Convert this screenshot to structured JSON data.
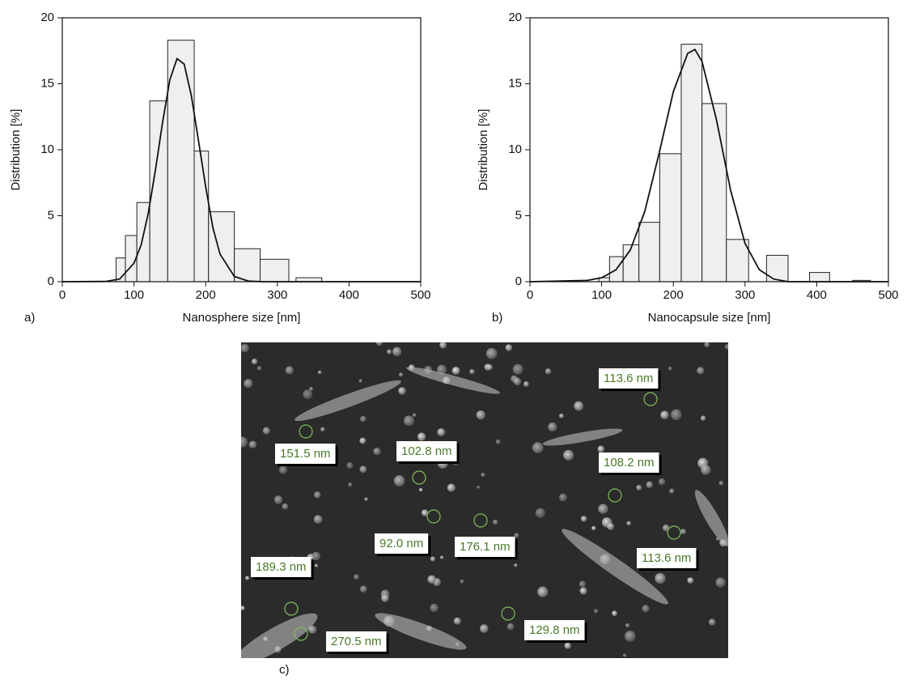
{
  "chart_data": [
    {
      "type": "histogram",
      "panel_label": "a)",
      "x_label": "Nanosphere size [nm]",
      "y_label": "Distribution [%]",
      "bins": [
        75,
        88,
        104,
        122,
        147,
        184,
        204,
        240,
        276,
        316,
        326,
        362
      ],
      "values": [
        1.8,
        3.5,
        6.0,
        13.7,
        18.3,
        9.9,
        5.3,
        2.5,
        1.7,
        0,
        0.3
      ],
      "color": "#efefef",
      "fit": {
        "x": [
          0,
          60,
          80,
          100,
          110,
          120,
          130,
          140,
          150,
          160,
          170,
          180,
          190,
          200,
          210,
          220,
          240,
          260,
          280,
          500
        ],
        "values": [
          0,
          0.02,
          0.2,
          1.4,
          2.8,
          5.2,
          8.5,
          12.1,
          15.3,
          16.9,
          16.5,
          14.1,
          10.7,
          7.2,
          4.1,
          2.1,
          0.4,
          0.04,
          0,
          0
        ]
      },
      "xlim": [
        0,
        500
      ],
      "xticks": [
        0,
        100,
        200,
        300,
        400,
        500
      ],
      "ylim": [
        0,
        20
      ],
      "yticks": [
        0,
        5,
        10,
        15,
        20
      ]
    },
    {
      "type": "histogram",
      "panel_label": "b)",
      "x_label": "Nanocapsule size [nm]",
      "y_label": "Distribution [%]",
      "bins": [
        96,
        111,
        130,
        152,
        181,
        211,
        240,
        274,
        305,
        330,
        360,
        390,
        418,
        450,
        475
      ],
      "values": [
        0.3,
        1.9,
        2.8,
        4.5,
        9.7,
        18.0,
        13.5,
        3.2,
        0,
        2.0,
        0,
        0.7,
        0,
        0.1
      ],
      "color": "#efefef",
      "fit": {
        "x": [
          0,
          80,
          100,
          120,
          140,
          160,
          180,
          200,
          220,
          230,
          240,
          260,
          280,
          300,
          320,
          340,
          360,
          500
        ],
        "values": [
          0,
          0.1,
          0.3,
          0.9,
          2.4,
          5.3,
          9.7,
          14.4,
          17.3,
          17.6,
          16.7,
          12.3,
          6.9,
          2.9,
          0.9,
          0.2,
          0,
          0
        ]
      },
      "xlim": [
        0,
        500
      ],
      "xticks": [
        0,
        100,
        200,
        300,
        400,
        500
      ],
      "ylim": [
        0,
        20
      ],
      "yticks": [
        0,
        5,
        10,
        15,
        20
      ]
    }
  ],
  "micrograph": {
    "panel_label": "c)",
    "measurements": [
      "113.6 nm",
      "151.5 nm",
      "102.8 nm",
      "108.2 nm",
      "92.0 nm",
      "176.1 nm",
      "113.6 nm",
      "189.3 nm",
      "129.8 nm",
      "270.5 nm"
    ]
  }
}
